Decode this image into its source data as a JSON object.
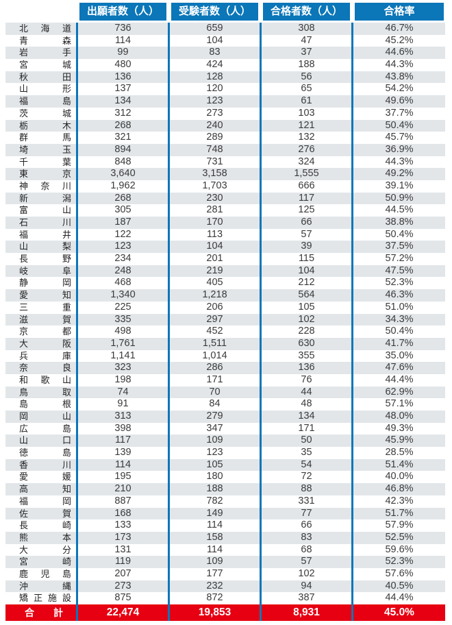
{
  "colors": {
    "header_blue": "#0b76b8",
    "stripe_gray": "#e2e6e9",
    "total_red": "#e60012",
    "header_text": "#ffffff",
    "body_text": "#3a3a3a"
  },
  "chart_data": {
    "type": "table",
    "columns": [
      "出願者数（人）",
      "受験者数（人）",
      "合格者数（人）",
      "合格率"
    ],
    "rows": [
      [
        "北海道",
        "736",
        "659",
        "308",
        "46.7%"
      ],
      [
        "青森",
        "114",
        "104",
        "47",
        "45.2%"
      ],
      [
        "岩手",
        "99",
        "83",
        "37",
        "44.6%"
      ],
      [
        "宮城",
        "480",
        "424",
        "188",
        "44.3%"
      ],
      [
        "秋田",
        "136",
        "128",
        "56",
        "43.8%"
      ],
      [
        "山形",
        "137",
        "120",
        "65",
        "54.2%"
      ],
      [
        "福島",
        "134",
        "123",
        "61",
        "49.6%"
      ],
      [
        "茨城",
        "312",
        "273",
        "103",
        "37.7%"
      ],
      [
        "栃木",
        "268",
        "240",
        "121",
        "50.4%"
      ],
      [
        "群馬",
        "321",
        "289",
        "132",
        "45.7%"
      ],
      [
        "埼玉",
        "894",
        "748",
        "276",
        "36.9%"
      ],
      [
        "千葉",
        "848",
        "731",
        "324",
        "44.3%"
      ],
      [
        "東京",
        "3,640",
        "3,158",
        "1,555",
        "49.2%"
      ],
      [
        "神奈川",
        "1,962",
        "1,703",
        "666",
        "39.1%"
      ],
      [
        "新潟",
        "268",
        "230",
        "117",
        "50.9%"
      ],
      [
        "富山",
        "305",
        "281",
        "125",
        "44.5%"
      ],
      [
        "石川",
        "187",
        "170",
        "66",
        "38.8%"
      ],
      [
        "福井",
        "122",
        "113",
        "57",
        "50.4%"
      ],
      [
        "山梨",
        "123",
        "104",
        "39",
        "37.5%"
      ],
      [
        "長野",
        "234",
        "201",
        "115",
        "57.2%"
      ],
      [
        "岐阜",
        "248",
        "219",
        "104",
        "47.5%"
      ],
      [
        "静岡",
        "468",
        "405",
        "212",
        "52.3%"
      ],
      [
        "愛知",
        "1,340",
        "1,218",
        "564",
        "46.3%"
      ],
      [
        "三重",
        "225",
        "206",
        "105",
        "51.0%"
      ],
      [
        "滋賀",
        "335",
        "297",
        "102",
        "34.3%"
      ],
      [
        "京都",
        "498",
        "452",
        "228",
        "50.4%"
      ],
      [
        "大阪",
        "1,761",
        "1,511",
        "630",
        "41.7%"
      ],
      [
        "兵庫",
        "1,141",
        "1,014",
        "355",
        "35.0%"
      ],
      [
        "奈良",
        "323",
        "286",
        "136",
        "47.6%"
      ],
      [
        "和歌山",
        "198",
        "171",
        "76",
        "44.4%"
      ],
      [
        "鳥取",
        "74",
        "70",
        "44",
        "62.9%"
      ],
      [
        "島根",
        "91",
        "84",
        "48",
        "57.1%"
      ],
      [
        "岡山",
        "313",
        "279",
        "134",
        "48.0%"
      ],
      [
        "広島",
        "398",
        "347",
        "171",
        "49.3%"
      ],
      [
        "山口",
        "117",
        "109",
        "50",
        "45.9%"
      ],
      [
        "徳島",
        "139",
        "123",
        "35",
        "28.5%"
      ],
      [
        "香川",
        "114",
        "105",
        "54",
        "51.4%"
      ],
      [
        "愛媛",
        "195",
        "180",
        "72",
        "40.0%"
      ],
      [
        "高知",
        "210",
        "188",
        "88",
        "46.8%"
      ],
      [
        "福岡",
        "887",
        "782",
        "331",
        "42.3%"
      ],
      [
        "佐賀",
        "168",
        "149",
        "77",
        "51.7%"
      ],
      [
        "長崎",
        "133",
        "114",
        "66",
        "57.9%"
      ],
      [
        "熊本",
        "173",
        "158",
        "83",
        "52.5%"
      ],
      [
        "大分",
        "131",
        "114",
        "68",
        "59.6%"
      ],
      [
        "宮崎",
        "119",
        "109",
        "57",
        "52.3%"
      ],
      [
        "鹿児島",
        "207",
        "177",
        "102",
        "57.6%"
      ],
      [
        "沖縄",
        "273",
        "232",
        "94",
        "40.5%"
      ],
      [
        "矯正施設",
        "875",
        "872",
        "387",
        "44.4%"
      ]
    ],
    "total": {
      "label": "合計",
      "values": [
        "22,474",
        "19,853",
        "8,931",
        "45.0%"
      ]
    }
  }
}
